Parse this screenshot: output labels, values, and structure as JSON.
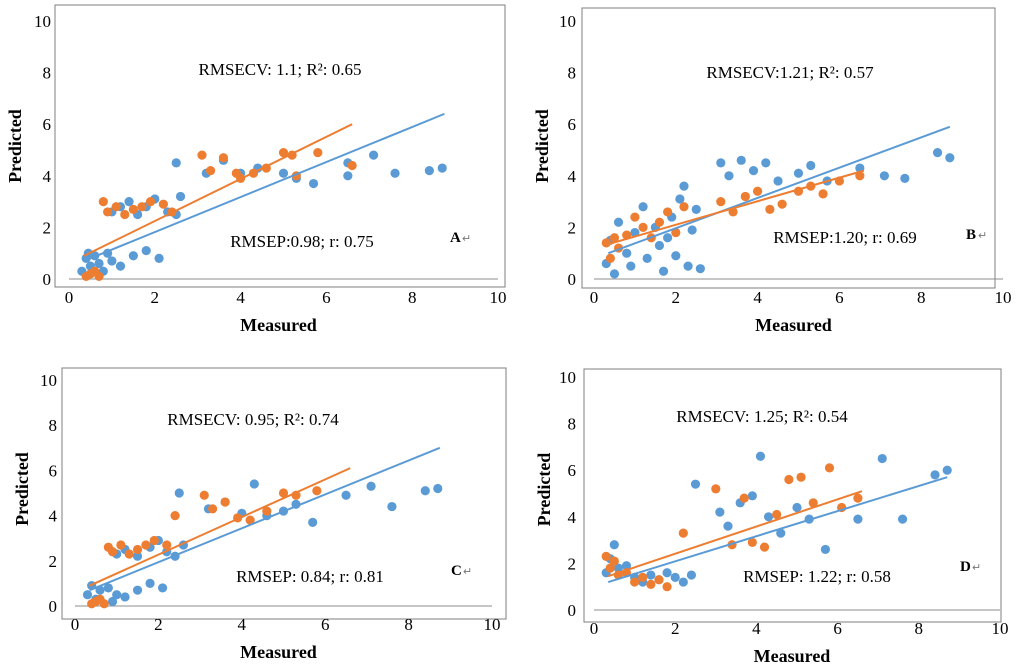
{
  "chart_data": [
    {
      "type": "scatter",
      "panel_letter": "A",
      "xlabel": "Measured",
      "ylabel": "Predicted",
      "xlim": [
        0,
        10
      ],
      "ylim": [
        0,
        10
      ],
      "x_ticks": [
        "0",
        "2",
        "4",
        "6",
        "8",
        "10"
      ],
      "y_ticks": [
        "0",
        "2",
        "4",
        "6",
        "8",
        "10"
      ],
      "annotation_cv": "RMSECV: 1.1; R²: 0.65",
      "annotation_p": "RMSEP:0.98; r: 0.75",
      "series": [
        {
          "color": "#5B9BD5",
          "points": [
            [
              0.3,
              0.3
            ],
            [
              0.4,
              0.8
            ],
            [
              0.45,
              1.0
            ],
            [
              0.5,
              0.5
            ],
            [
              0.6,
              0.9
            ],
            [
              0.7,
              0.6
            ],
            [
              0.8,
              0.3
            ],
            [
              0.9,
              1.0
            ],
            [
              1.0,
              0.7
            ],
            [
              1.2,
              0.5
            ],
            [
              1.5,
              0.9
            ],
            [
              1.8,
              1.1
            ],
            [
              2.1,
              0.8
            ],
            [
              1.0,
              2.6
            ],
            [
              1.2,
              2.8
            ],
            [
              1.4,
              3.0
            ],
            [
              1.6,
              2.5
            ],
            [
              1.8,
              2.8
            ],
            [
              2.0,
              3.1
            ],
            [
              2.3,
              2.6
            ],
            [
              2.5,
              2.5
            ],
            [
              2.6,
              3.2
            ],
            [
              2.5,
              4.5
            ],
            [
              3.2,
              4.1
            ],
            [
              3.6,
              4.6
            ],
            [
              4.0,
              4.1
            ],
            [
              4.4,
              4.3
            ],
            [
              5.0,
              4.1
            ],
            [
              5.3,
              3.9
            ],
            [
              5.7,
              3.7
            ],
            [
              6.5,
              4.0
            ],
            [
              6.5,
              4.5
            ],
            [
              7.1,
              4.8
            ],
            [
              7.6,
              4.1
            ],
            [
              8.4,
              4.2
            ],
            [
              8.7,
              4.3
            ]
          ],
          "fit": [
            [
              0.35,
              0.7
            ],
            [
              8.75,
              6.4
            ]
          ]
        },
        {
          "color": "#ED7D31",
          "points": [
            [
              0.4,
              0.1
            ],
            [
              0.5,
              0.2
            ],
            [
              0.6,
              0.3
            ],
            [
              0.7,
              0.1
            ],
            [
              0.8,
              3.0
            ],
            [
              0.9,
              2.6
            ],
            [
              1.1,
              2.8
            ],
            [
              1.3,
              2.5
            ],
            [
              1.5,
              2.7
            ],
            [
              1.7,
              2.8
            ],
            [
              1.9,
              3.0
            ],
            [
              2.2,
              2.9
            ],
            [
              2.4,
              2.6
            ],
            [
              3.1,
              4.8
            ],
            [
              3.3,
              4.2
            ],
            [
              3.6,
              4.7
            ],
            [
              3.9,
              4.1
            ],
            [
              4.0,
              3.9
            ],
            [
              4.3,
              4.1
            ],
            [
              4.6,
              4.3
            ],
            [
              5.0,
              4.9
            ],
            [
              5.2,
              4.8
            ],
            [
              5.3,
              4.0
            ],
            [
              5.8,
              4.9
            ],
            [
              6.6,
              4.4
            ]
          ],
          "fit": [
            [
              0.35,
              0.9
            ],
            [
              6.6,
              6.0
            ]
          ]
        }
      ]
    },
    {
      "type": "scatter",
      "panel_letter": "B",
      "xlabel": "Measured",
      "ylabel": "Predicted",
      "xlim": [
        0,
        10
      ],
      "ylim": [
        0,
        10
      ],
      "x_ticks": [
        "0",
        "2",
        "4",
        "6",
        "8",
        "10"
      ],
      "y_ticks": [
        "0",
        "2",
        "4",
        "6",
        "8",
        "10"
      ],
      "annotation_cv": "RMSECV:1.21; R²: 0.57",
      "annotation_p": "RMSEP:1.20; r: 0.69",
      "series": [
        {
          "color": "#5B9BD5",
          "points": [
            [
              0.3,
              0.6
            ],
            [
              0.4,
              1.5
            ],
            [
              0.5,
              0.2
            ],
            [
              0.6,
              2.2
            ],
            [
              0.8,
              1.0
            ],
            [
              0.9,
              0.5
            ],
            [
              1.0,
              1.8
            ],
            [
              1.2,
              2.8
            ],
            [
              1.3,
              0.8
            ],
            [
              1.5,
              2.0
            ],
            [
              1.6,
              1.3
            ],
            [
              1.7,
              0.3
            ],
            [
              1.8,
              1.6
            ],
            [
              1.9,
              2.4
            ],
            [
              2.0,
              0.9
            ],
            [
              2.1,
              3.1
            ],
            [
              2.2,
              3.6
            ],
            [
              2.3,
              0.5
            ],
            [
              2.4,
              1.9
            ],
            [
              2.5,
              2.7
            ],
            [
              2.6,
              0.4
            ],
            [
              3.1,
              4.5
            ],
            [
              3.3,
              4.0
            ],
            [
              3.6,
              4.6
            ],
            [
              3.9,
              4.2
            ],
            [
              4.2,
              4.5
            ],
            [
              4.5,
              3.8
            ],
            [
              5.0,
              4.1
            ],
            [
              5.3,
              4.4
            ],
            [
              5.7,
              3.8
            ],
            [
              6.5,
              4.3
            ],
            [
              7.1,
              4.0
            ],
            [
              7.6,
              3.9
            ],
            [
              8.4,
              4.9
            ],
            [
              8.7,
              4.7
            ]
          ],
          "fit": [
            [
              0.35,
              1.0
            ],
            [
              8.7,
              5.9
            ]
          ]
        },
        {
          "color": "#ED7D31",
          "points": [
            [
              0.3,
              1.4
            ],
            [
              0.4,
              0.8
            ],
            [
              0.5,
              1.6
            ],
            [
              0.6,
              1.2
            ],
            [
              0.8,
              1.7
            ],
            [
              1.0,
              2.4
            ],
            [
              1.2,
              2.0
            ],
            [
              1.4,
              1.6
            ],
            [
              1.6,
              2.2
            ],
            [
              1.8,
              2.6
            ],
            [
              2.0,
              1.8
            ],
            [
              2.2,
              2.8
            ],
            [
              3.1,
              3.0
            ],
            [
              3.4,
              2.6
            ],
            [
              3.7,
              3.2
            ],
            [
              4.0,
              3.4
            ],
            [
              4.3,
              2.7
            ],
            [
              4.6,
              2.9
            ],
            [
              5.0,
              3.4
            ],
            [
              5.3,
              3.6
            ],
            [
              5.6,
              3.3
            ],
            [
              6.0,
              3.8
            ],
            [
              6.5,
              4.0
            ]
          ],
          "fit": [
            [
              0.35,
              1.35
            ],
            [
              6.6,
              4.2
            ]
          ]
        }
      ]
    },
    {
      "type": "scatter",
      "panel_letter": "C",
      "xlabel": "Measured",
      "ylabel": "Predicted",
      "xlim": [
        0,
        10
      ],
      "ylim": [
        0,
        10
      ],
      "x_ticks": [
        "0",
        "2",
        "4",
        "6",
        "8",
        "10"
      ],
      "y_ticks": [
        "0",
        "2",
        "4",
        "6",
        "8",
        "10"
      ],
      "annotation_cv": "RMSECV: 0.95; R²: 0.74",
      "annotation_p": "RMSEP: 0.84; r: 0.81",
      "series": [
        {
          "color": "#5B9BD5",
          "points": [
            [
              0.3,
              0.5
            ],
            [
              0.4,
              0.9
            ],
            [
              0.5,
              0.3
            ],
            [
              0.6,
              0.7
            ],
            [
              0.8,
              0.8
            ],
            [
              0.9,
              0.2
            ],
            [
              1.0,
              0.5
            ],
            [
              1.2,
              0.4
            ],
            [
              1.5,
              0.7
            ],
            [
              1.8,
              1.0
            ],
            [
              2.1,
              0.8
            ],
            [
              1.0,
              2.3
            ],
            [
              1.2,
              2.5
            ],
            [
              1.5,
              2.2
            ],
            [
              1.8,
              2.6
            ],
            [
              2.0,
              2.9
            ],
            [
              2.2,
              2.4
            ],
            [
              2.4,
              2.2
            ],
            [
              2.6,
              2.7
            ],
            [
              2.5,
              5.0
            ],
            [
              3.2,
              4.3
            ],
            [
              3.6,
              4.6
            ],
            [
              4.0,
              4.1
            ],
            [
              4.3,
              5.4
            ],
            [
              4.6,
              4.0
            ],
            [
              5.0,
              4.2
            ],
            [
              5.3,
              4.5
            ],
            [
              5.7,
              3.7
            ],
            [
              6.5,
              4.9
            ],
            [
              7.1,
              5.3
            ],
            [
              7.6,
              4.4
            ],
            [
              8.4,
              5.1
            ],
            [
              8.7,
              5.2
            ]
          ],
          "fit": [
            [
              0.35,
              0.7
            ],
            [
              8.75,
              7.0
            ]
          ]
        },
        {
          "color": "#ED7D31",
          "points": [
            [
              0.4,
              0.1
            ],
            [
              0.5,
              0.2
            ],
            [
              0.6,
              0.3
            ],
            [
              0.7,
              0.1
            ],
            [
              0.8,
              2.6
            ],
            [
              0.9,
              2.4
            ],
            [
              1.1,
              2.7
            ],
            [
              1.3,
              2.3
            ],
            [
              1.5,
              2.5
            ],
            [
              1.7,
              2.7
            ],
            [
              1.9,
              2.9
            ],
            [
              2.2,
              2.7
            ],
            [
              2.4,
              4.0
            ],
            [
              3.1,
              4.9
            ],
            [
              3.3,
              4.3
            ],
            [
              3.6,
              4.6
            ],
            [
              3.9,
              3.9
            ],
            [
              4.2,
              3.8
            ],
            [
              4.6,
              4.2
            ],
            [
              5.0,
              5.0
            ],
            [
              5.3,
              4.9
            ],
            [
              5.8,
              5.1
            ]
          ],
          "fit": [
            [
              0.35,
              0.9
            ],
            [
              6.6,
              6.1
            ]
          ]
        }
      ]
    },
    {
      "type": "scatter",
      "panel_letter": "D",
      "xlabel": "Measured",
      "ylabel": "Predicted",
      "xlim": [
        0,
        10
      ],
      "ylim": [
        0,
        10
      ],
      "x_ticks": [
        "0",
        "2",
        "4",
        "6",
        "8",
        "10"
      ],
      "y_ticks": [
        "0",
        "2",
        "4",
        "6",
        "8",
        "10"
      ],
      "annotation_cv": "RMSECV: 1.25; R²: 0.54",
      "annotation_p": "RMSEP: 1.22; r: 0.58",
      "series": [
        {
          "color": "#5B9BD5",
          "points": [
            [
              0.3,
              1.6
            ],
            [
              0.4,
              2.2
            ],
            [
              0.5,
              2.8
            ],
            [
              0.6,
              1.8
            ],
            [
              0.8,
              1.9
            ],
            [
              1.0,
              1.4
            ],
            [
              1.2,
              1.2
            ],
            [
              1.4,
              1.5
            ],
            [
              1.6,
              1.3
            ],
            [
              1.8,
              1.6
            ],
            [
              2.0,
              1.4
            ],
            [
              2.2,
              1.2
            ],
            [
              2.4,
              1.5
            ],
            [
              2.5,
              5.4
            ],
            [
              3.1,
              4.2
            ],
            [
              3.3,
              3.6
            ],
            [
              3.6,
              4.6
            ],
            [
              3.9,
              4.9
            ],
            [
              4.1,
              6.6
            ],
            [
              4.3,
              4.0
            ],
            [
              4.6,
              3.3
            ],
            [
              5.0,
              4.4
            ],
            [
              5.3,
              3.9
            ],
            [
              5.7,
              2.6
            ],
            [
              6.5,
              3.9
            ],
            [
              7.1,
              6.5
            ],
            [
              7.6,
              3.9
            ],
            [
              8.4,
              5.8
            ],
            [
              8.7,
              6.0
            ]
          ],
          "fit": [
            [
              0.35,
              1.2
            ],
            [
              8.7,
              5.7
            ]
          ]
        },
        {
          "color": "#ED7D31",
          "points": [
            [
              0.3,
              2.3
            ],
            [
              0.4,
              1.8
            ],
            [
              0.5,
              2.1
            ],
            [
              0.6,
              1.5
            ],
            [
              0.8,
              1.6
            ],
            [
              1.0,
              1.2
            ],
            [
              1.2,
              1.4
            ],
            [
              1.4,
              1.1
            ],
            [
              1.6,
              1.3
            ],
            [
              1.8,
              1.0
            ],
            [
              2.2,
              3.3
            ],
            [
              3.0,
              5.2
            ],
            [
              3.4,
              2.8
            ],
            [
              3.7,
              4.8
            ],
            [
              3.9,
              2.9
            ],
            [
              4.2,
              2.7
            ],
            [
              4.5,
              4.1
            ],
            [
              4.8,
              5.6
            ],
            [
              5.1,
              5.7
            ],
            [
              5.4,
              4.6
            ],
            [
              5.8,
              6.1
            ],
            [
              6.1,
              4.4
            ],
            [
              6.5,
              4.8
            ]
          ],
          "fit": [
            [
              0.35,
              1.45
            ],
            [
              6.6,
              5.1
            ]
          ]
        }
      ]
    }
  ]
}
